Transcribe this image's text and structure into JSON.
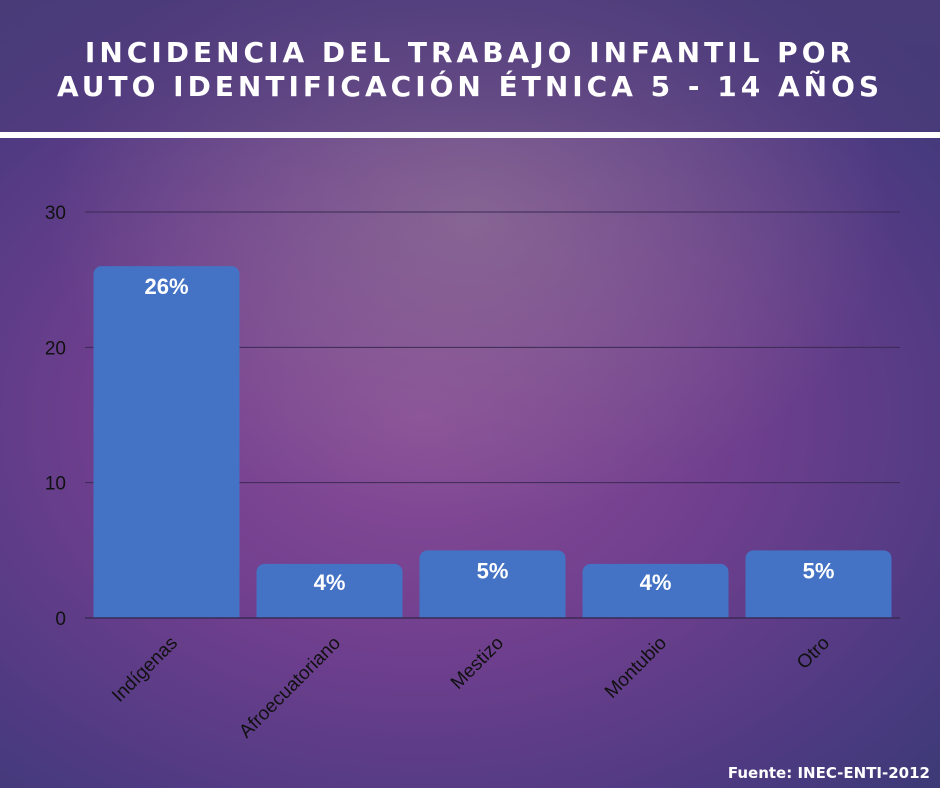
{
  "header": {
    "title_line1": "INCIDENCIA DEL TRABAJO INFANTIL POR",
    "title_line2": "AUTO IDENTIFICACIÓN ÉTNICA 5 - 14 AÑOS"
  },
  "footer": {
    "source": "Fuente: INEC-ENTI-2012"
  },
  "colors": {
    "bar": "#4472c4",
    "gridline": "#3a2a55",
    "axis_text": "#111111",
    "label_text": "#ffffff"
  },
  "chart_data": {
    "type": "bar",
    "title": "INCIDENCIA DEL TRABAJO INFANTIL POR AUTO IDENTIFICACIÓN ÉTNICA 5 - 14 AÑOS",
    "categories": [
      "Indígenas",
      "Afroecuatoriano",
      "Mestizo",
      "Montubio",
      "Otro"
    ],
    "values": [
      26,
      4,
      5,
      4,
      5
    ],
    "data_labels": [
      "26%",
      "4%",
      "5%",
      "4%",
      "5%"
    ],
    "yticks": [
      0,
      10,
      20,
      30
    ],
    "ylim": [
      0,
      30
    ],
    "xlabel": "",
    "ylabel": "",
    "grid": true,
    "legend": "none"
  }
}
